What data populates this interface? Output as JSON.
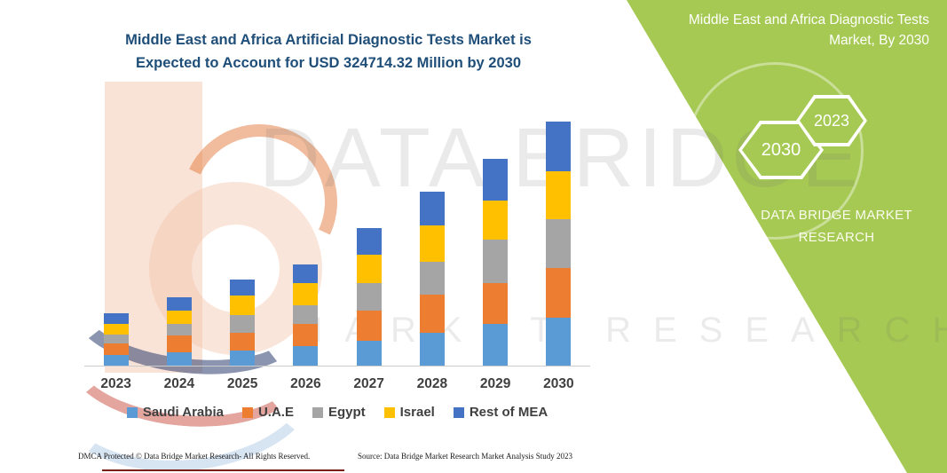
{
  "header": {
    "title_line1": "Middle East and Africa Artificial Diagnostic Tests Market is",
    "title_line2": "Expected to Account for USD 324714.32 Million by 2030"
  },
  "side_panel": {
    "bg_color": "#a5c952",
    "title_line1": "Middle East and Africa Diagnostic Tests",
    "title_line2": "Market, By 2030",
    "hexagons": [
      {
        "label": "2023"
      },
      {
        "label": "2030"
      }
    ],
    "brand_line1": "DATA BRIDGE MARKET",
    "brand_line2": "RESEARCH"
  },
  "watermark": {
    "line1": "DATA BRIDGE",
    "line2": "MARKET RESEARCH"
  },
  "chart_data": {
    "type": "bar",
    "stacked": true,
    "unit": "USD Million",
    "title": "Middle East and Africa Artificial Diagnostic Tests Market, 2023-2030",
    "legend_position": "bottom",
    "y_axis_visible": false,
    "total_2030": 324714.32,
    "categories": [
      "2023",
      "2024",
      "2025",
      "2026",
      "2027",
      "2028",
      "2029",
      "2030"
    ],
    "series": [
      {
        "name": "Saudi Arabia",
        "color": "#5B9BD5",
        "values": [
          14500,
          17300,
          20100,
          25600,
          33400,
          44000,
          55100,
          64100
        ]
      },
      {
        "name": "U.A.E",
        "color": "#ED7D31",
        "values": [
          15000,
          22400,
          23600,
          29500,
          39300,
          50400,
          55100,
          66400
        ]
      },
      {
        "name": "Egypt",
        "color": "#A5A5A5",
        "values": [
          11800,
          15700,
          23600,
          25600,
          36600,
          44000,
          57000,
          64900
        ]
      },
      {
        "name": "Israel",
        "color": "#FFC000",
        "values": [
          13800,
          17700,
          25600,
          29100,
          38900,
          48400,
          51900,
          63700
        ]
      },
      {
        "name": "Rest of MEA",
        "color": "#4472C4",
        "values": [
          14500,
          17700,
          21600,
          24400,
          35400,
          44000,
          55500,
          65600
        ]
      }
    ]
  },
  "footer": {
    "left": "DMCA Protected © Data Bridge Market Research-  All Rights Reserved.",
    "right": "Source: Data Bridge Market Research  Market Analysis Study 2023"
  }
}
